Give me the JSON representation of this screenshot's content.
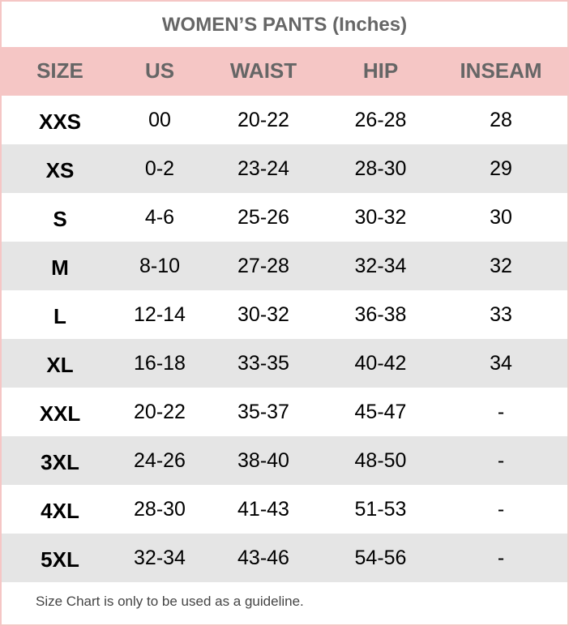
{
  "title": "WOMEN’S PANTS (Inches)",
  "colors": {
    "header_bg": "#f5c6c5",
    "alt_row_bg": "#e5e5e5",
    "border": "#f5c6c5"
  },
  "columns": [
    "SIZE",
    "US",
    "WAIST",
    "HIP",
    "INSEAM"
  ],
  "rows": [
    [
      "XXS",
      "00",
      "20-22",
      "26-28",
      "28"
    ],
    [
      "XS",
      "0-2",
      "23-24",
      "28-30",
      "29"
    ],
    [
      "S",
      "4-6",
      "25-26",
      "30-32",
      "30"
    ],
    [
      "M",
      "8-10",
      "27-28",
      "32-34",
      "32"
    ],
    [
      "L",
      "12-14",
      "30-32",
      "36-38",
      "33"
    ],
    [
      "XL",
      "16-18",
      "33-35",
      "40-42",
      "34"
    ],
    [
      "XXL",
      "20-22",
      "35-37",
      "45-47",
      "-"
    ],
    [
      "3XL",
      "24-26",
      "38-40",
      "48-50",
      "-"
    ],
    [
      "4XL",
      "28-30",
      "41-43",
      "51-53",
      "-"
    ],
    [
      "5XL",
      "32-34",
      "43-46",
      "54-56",
      "-"
    ]
  ],
  "footer": "Size Chart is only to be used as a guideline."
}
